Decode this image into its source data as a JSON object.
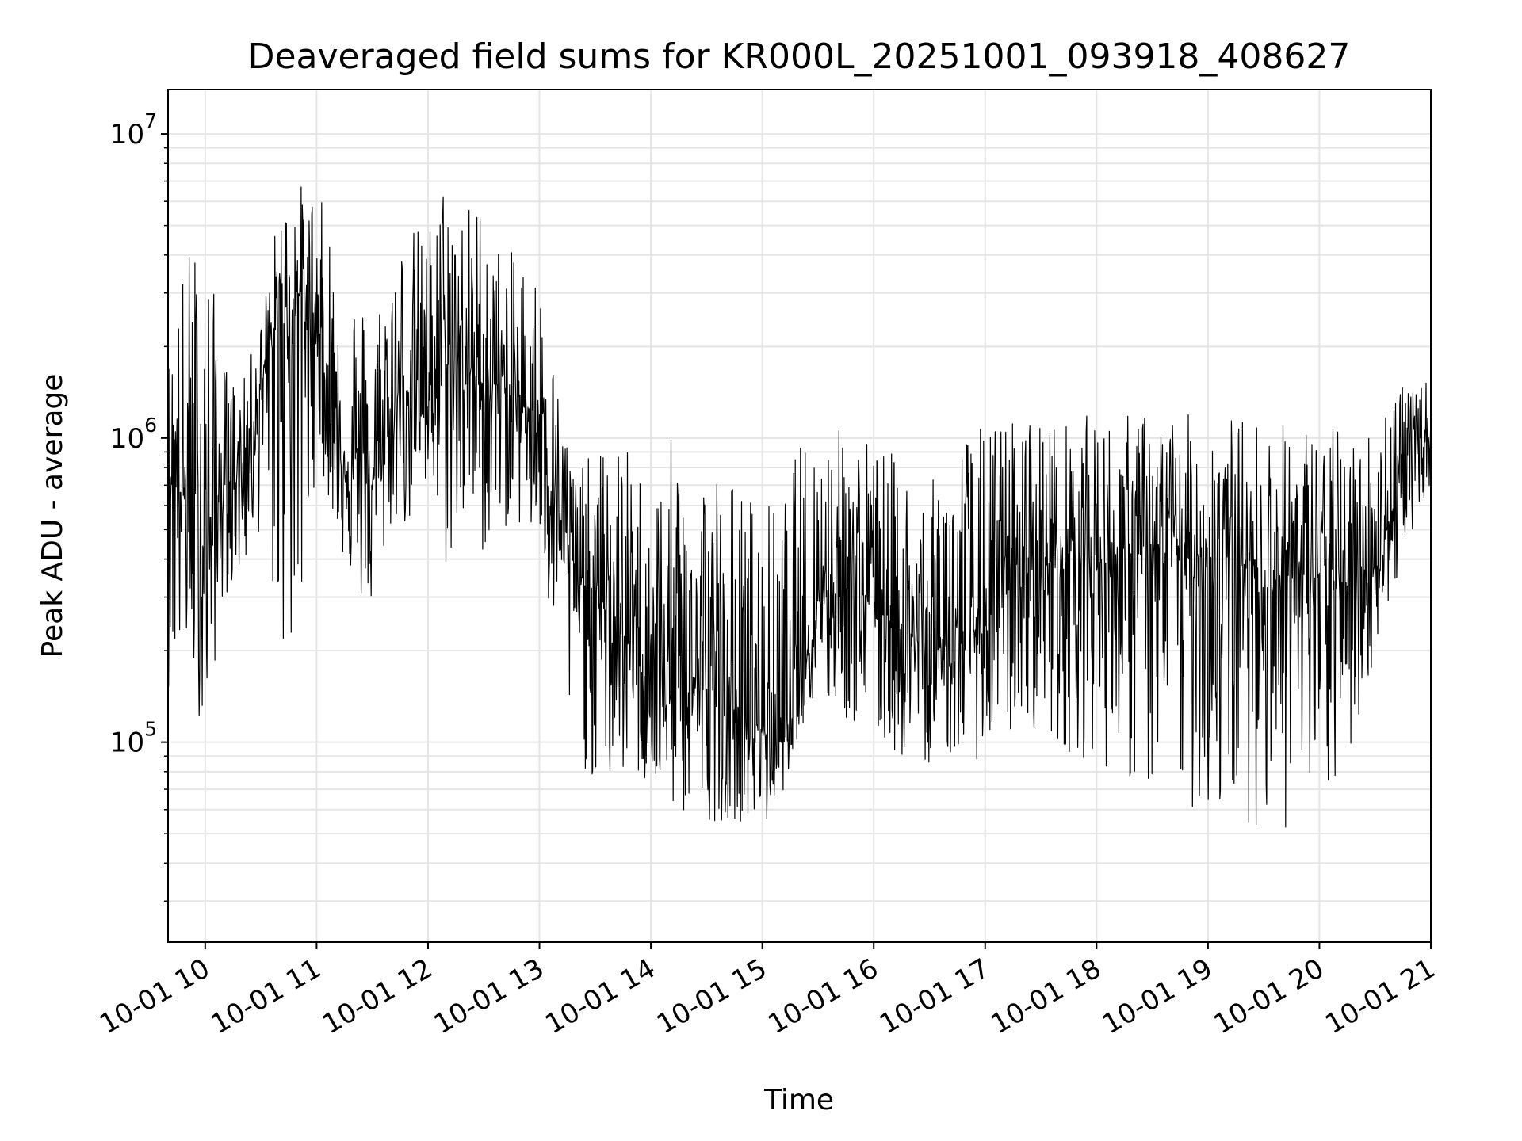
{
  "chart_data": {
    "type": "line",
    "title": "Deaveraged field sums for KR000L_20251001_093918_408627",
    "xlabel": "Time",
    "ylabel": "Peak ADU - average",
    "y_scale": "log",
    "ylim": [
      22000,
      14000000
    ],
    "xlim": [
      "2025-10-01 09:40",
      "2025-10-01 21:00"
    ],
    "grid": true,
    "line_color": "#000000",
    "grid_color": "#e5e5e5",
    "x_ticks": [
      {
        "value": "2025-10-01 10:00",
        "label": "10-01 10"
      },
      {
        "value": "2025-10-01 11:00",
        "label": "10-01 11"
      },
      {
        "value": "2025-10-01 12:00",
        "label": "10-01 12"
      },
      {
        "value": "2025-10-01 13:00",
        "label": "10-01 13"
      },
      {
        "value": "2025-10-01 14:00",
        "label": "10-01 14"
      },
      {
        "value": "2025-10-01 15:00",
        "label": "10-01 15"
      },
      {
        "value": "2025-10-01 16:00",
        "label": "10-01 16"
      },
      {
        "value": "2025-10-01 17:00",
        "label": "10-01 17"
      },
      {
        "value": "2025-10-01 18:00",
        "label": "10-01 18"
      },
      {
        "value": "2025-10-01 19:00",
        "label": "10-01 19"
      },
      {
        "value": "2025-10-01 20:00",
        "label": "10-01 20"
      },
      {
        "value": "2025-10-01 21:00",
        "label": "10-01 21"
      }
    ],
    "y_ticks": [
      {
        "value": 100000,
        "base": "10",
        "exp": "5"
      },
      {
        "value": 1000000,
        "base": "10",
        "exp": "6"
      },
      {
        "value": 10000000,
        "base": "10",
        "exp": "7"
      }
    ],
    "series": [
      {
        "x": [
          "2025-10-01 09:40",
          "2025-10-01 09:50",
          "2025-10-01 10:00",
          "2025-10-01 10:10",
          "2025-10-01 10:20",
          "2025-10-01 10:30",
          "2025-10-01 10:40",
          "2025-10-01 10:50",
          "2025-10-01 11:00",
          "2025-10-01 11:10",
          "2025-10-01 11:20",
          "2025-10-01 11:30",
          "2025-10-01 11:40",
          "2025-10-01 11:50",
          "2025-10-01 12:00",
          "2025-10-01 12:10",
          "2025-10-01 12:20",
          "2025-10-01 12:30",
          "2025-10-01 12:40",
          "2025-10-01 12:50",
          "2025-10-01 13:00",
          "2025-10-01 13:10",
          "2025-10-01 13:20",
          "2025-10-01 13:30",
          "2025-10-01 13:40",
          "2025-10-01 13:50",
          "2025-10-01 14:00",
          "2025-10-01 14:10",
          "2025-10-01 14:20",
          "2025-10-01 14:30",
          "2025-10-01 14:40",
          "2025-10-01 14:50",
          "2025-10-01 15:00",
          "2025-10-01 15:10",
          "2025-10-01 15:20",
          "2025-10-01 15:30",
          "2025-10-01 15:40",
          "2025-10-01 15:50",
          "2025-10-01 16:00",
          "2025-10-01 16:10",
          "2025-10-01 16:20",
          "2025-10-01 16:30",
          "2025-10-01 16:40",
          "2025-10-01 16:50",
          "2025-10-01 17:00",
          "2025-10-01 17:10",
          "2025-10-01 17:20",
          "2025-10-01 17:30",
          "2025-10-01 17:40",
          "2025-10-01 17:50",
          "2025-10-01 18:00",
          "2025-10-01 18:10",
          "2025-10-01 18:20",
          "2025-10-01 18:30",
          "2025-10-01 18:40",
          "2025-10-01 18:50",
          "2025-10-01 19:00",
          "2025-10-01 19:10",
          "2025-10-01 19:20",
          "2025-10-01 19:30",
          "2025-10-01 19:40",
          "2025-10-01 19:50",
          "2025-10-01 20:00",
          "2025-10-01 20:10",
          "2025-10-01 20:20",
          "2025-10-01 20:30",
          "2025-10-01 20:40",
          "2025-10-01 20:50",
          "2025-10-01 21:00"
        ],
        "y": [
          900000,
          600000,
          450000,
          700000,
          800000,
          1500000,
          2500000,
          3000000,
          2500000,
          900000,
          800000,
          700000,
          1200000,
          1500000,
          1600000,
          1800000,
          1700000,
          1500000,
          1500000,
          1300000,
          1200000,
          600000,
          350000,
          300000,
          250000,
          200000,
          180000,
          150000,
          160000,
          150000,
          130000,
          120000,
          110000,
          100000,
          150000,
          300000,
          350000,
          320000,
          300000,
          250000,
          220000,
          200000,
          210000,
          220000,
          250000,
          300000,
          350000,
          380000,
          400000,
          420000,
          400000,
          380000,
          400000,
          420000,
          450000,
          400000,
          420000,
          400000,
          380000,
          350000,
          350000,
          350000,
          350000,
          320000,
          350000,
          380000,
          600000,
          1000000,
          1000000
        ],
        "upper": [
          1800000,
          4500000,
          5000000,
          1800000,
          1500000,
          2500000,
          6000000,
          7000000,
          6500000,
          5000000,
          3500000,
          2500000,
          4500000,
          5000000,
          5000000,
          8000000,
          6000000,
          6500000,
          4000000,
          4200000,
          3500000,
          1500000,
          800000,
          900000,
          1000000,
          900000,
          700000,
          1000000,
          950000,
          900000,
          800000,
          700000,
          650000,
          600000,
          1000000,
          1100000,
          1100000,
          1100000,
          1000000,
          900000,
          800000,
          700000,
          900000,
          1100000,
          1100000,
          1200000,
          1200000,
          1250000,
          1100000,
          1200000,
          1200000,
          1150000,
          1250000,
          1200000,
          1200000,
          1200000,
          1250000,
          1200000,
          1200000,
          1150000,
          1150000,
          1150000,
          1100000,
          1100000,
          1100000,
          1100000,
          1800000,
          1400000,
          1600000
        ],
        "lower": [
          150000,
          180000,
          100000,
          300000,
          350000,
          500000,
          200000,
          150000,
          900000,
          500000,
          300000,
          250000,
          500000,
          500000,
          600000,
          350000,
          500000,
          400000,
          500000,
          500000,
          400000,
          150000,
          90000,
          70000,
          70000,
          80000,
          65000,
          60000,
          55000,
          55000,
          55000,
          55000,
          50000,
          65000,
          110000,
          130000,
          120000,
          110000,
          100000,
          90000,
          85000,
          85000,
          90000,
          85000,
          90000,
          100000,
          110000,
          110000,
          95000,
          90000,
          85000,
          80000,
          70000,
          65000,
          65000,
          60000,
          55000,
          55000,
          55000,
          52000,
          50000,
          52000,
          55000,
          70000,
          100000,
          200000,
          300000,
          500000,
          700000
        ]
      }
    ]
  }
}
